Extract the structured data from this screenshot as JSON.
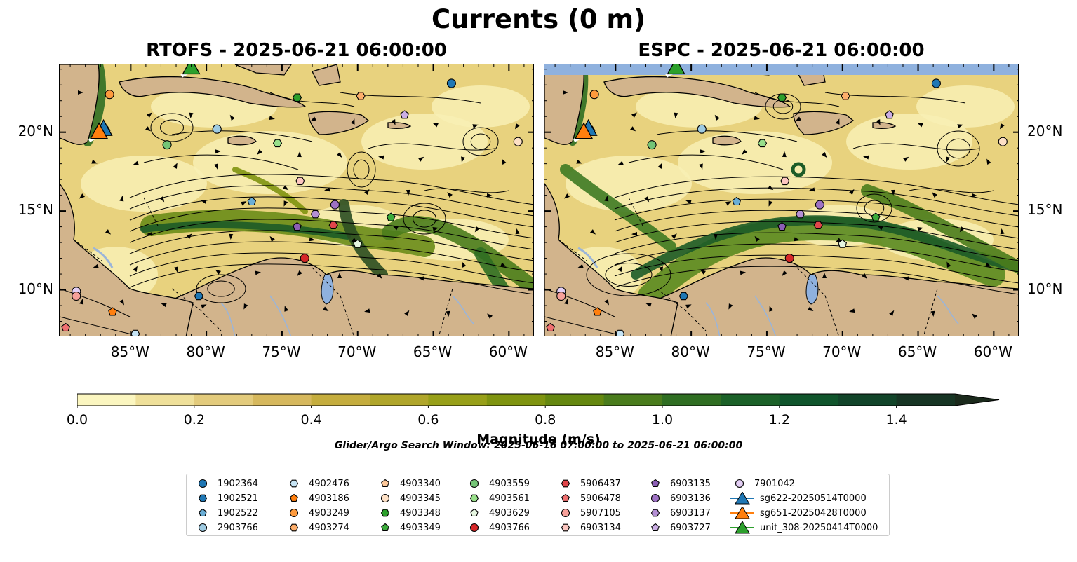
{
  "figure": {
    "title": "Currents (0 m)",
    "search_window": "Glider/Argo Search Window: 2025-06-16 07:00:00 to 2025-06-21 06:00:00"
  },
  "maps": [
    {
      "title": "RTOFS - 2025-06-21 06:00:00"
    },
    {
      "title": "ESPC - 2025-06-21 06:00:00"
    }
  ],
  "axes": {
    "lon_labels": [
      "85°W",
      "80°W",
      "75°W",
      "70°W",
      "65°W",
      "60°W"
    ],
    "lon_values": [
      -85,
      -80,
      -75,
      -70,
      -65,
      -60
    ],
    "lat_labels": [
      "20°N",
      "15°N",
      "10°N"
    ],
    "lat_values": [
      20,
      15,
      10
    ],
    "lon_range": [
      -89.7,
      -58.3
    ],
    "lat_range": [
      7,
      24.3
    ]
  },
  "colorbar": {
    "label": "Magnitude (m/s)",
    "tick_labels": [
      "0.0",
      "0.2",
      "0.4",
      "0.6",
      "0.8",
      "1.0",
      "1.2",
      "1.4"
    ],
    "range": [
      0,
      1.5
    ],
    "extend": "max",
    "colors": [
      "#fbf6c0",
      "#efe09a",
      "#e3cb7c",
      "#d6b85d",
      "#c5ad3e",
      "#b0a62b",
      "#98a019",
      "#7f9410",
      "#658810",
      "#4a7c1c",
      "#2f6e22",
      "#1b6128",
      "#10552c",
      "#12452a",
      "#173524",
      "#1b2a1c"
    ]
  },
  "colors": {
    "land": "#d2b48c",
    "water_fill": "#8fb1de",
    "river": "#9bb5d9"
  },
  "legend": {
    "items": [
      {
        "label": "1902364",
        "marker": "circle",
        "color": "#1f77b4"
      },
      {
        "label": "1902521",
        "marker": "hexagon",
        "color": "#1f77b4"
      },
      {
        "label": "1902522",
        "marker": "pentagon",
        "color": "#6aaed6"
      },
      {
        "label": "2903766",
        "marker": "circle",
        "color": "#9ecae1"
      },
      {
        "label": "4902476",
        "marker": "hexagon",
        "color": "#c6e4f5"
      },
      {
        "label": "4903186",
        "marker": "pentagon",
        "color": "#ff7f0e"
      },
      {
        "label": "4903249",
        "marker": "circle",
        "color": "#fd9a3d"
      },
      {
        "label": "4903274",
        "marker": "hexagon",
        "color": "#fdae6b"
      },
      {
        "label": "4903340",
        "marker": "pentagon",
        "color": "#fdc89a"
      },
      {
        "label": "4903345",
        "marker": "circle",
        "color": "#fde0c5"
      },
      {
        "label": "4903348",
        "marker": "hexagon",
        "color": "#2ca02c"
      },
      {
        "label": "4903349",
        "marker": "pentagon",
        "color": "#3bab3b"
      },
      {
        "label": "4903559",
        "marker": "circle",
        "color": "#74c476"
      },
      {
        "label": "4903561",
        "marker": "hexagon",
        "color": "#98df8a"
      },
      {
        "label": "4903629",
        "marker": "pentagon",
        "color": "#e5f5e0"
      },
      {
        "label": "4903766",
        "marker": "circle",
        "color": "#d62728"
      },
      {
        "label": "5906437",
        "marker": "hexagon",
        "color": "#e0454a"
      },
      {
        "label": "5906478",
        "marker": "pentagon",
        "color": "#f07070"
      },
      {
        "label": "5907105",
        "marker": "circle",
        "color": "#f7a09a"
      },
      {
        "label": "6903134",
        "marker": "hexagon",
        "color": "#fcc6c0"
      },
      {
        "label": "6903135",
        "marker": "pentagon",
        "color": "#8c5fb5"
      },
      {
        "label": "6903136",
        "marker": "circle",
        "color": "#9e72c4"
      },
      {
        "label": "6903137",
        "marker": "hexagon",
        "color": "#b48fd4"
      },
      {
        "label": "6903727",
        "marker": "pentagon",
        "color": "#cbaee4"
      },
      {
        "label": "7901042",
        "marker": "circle",
        "color": "#e4cff5"
      },
      {
        "label": "sg622-20250514T0000",
        "marker": "triangle-line",
        "color": "#1f77b4"
      },
      {
        "label": "sg651-20250428T0000",
        "marker": "triangle-line",
        "color": "#ff7f0e"
      },
      {
        "label": "unit_308-20250414T0000",
        "marker": "triangle-line",
        "color": "#2ca02c"
      }
    ]
  },
  "floats": [
    {
      "id": "1902364",
      "lon": -63.8,
      "lat": 23.1
    },
    {
      "id": "2903766",
      "lon": -79.3,
      "lat": 20.2
    },
    {
      "id": "4903249",
      "lon": -86.4,
      "lat": 22.4
    },
    {
      "id": "4903274",
      "lon": -69.8,
      "lat": 22.3
    },
    {
      "id": "4903345",
      "lon": -59.4,
      "lat": 19.4
    },
    {
      "id": "4903348",
      "lon": -74.0,
      "lat": 22.2
    },
    {
      "id": "4903559",
      "lon": -82.6,
      "lat": 19.2
    },
    {
      "id": "4903561",
      "lon": -75.3,
      "lat": 19.3
    },
    {
      "id": "6903727",
      "lon": -66.9,
      "lat": 21.1
    },
    {
      "id": "6903134",
      "lon": -73.8,
      "lat": 16.9
    },
    {
      "id": "1902522",
      "lon": -77.0,
      "lat": 15.6
    },
    {
      "id": "6903137",
      "lon": -72.8,
      "lat": 14.8
    },
    {
      "id": "6903136",
      "lon": -71.5,
      "lat": 15.4
    },
    {
      "id": "6903135",
      "lon": -74.0,
      "lat": 14.0
    },
    {
      "id": "5906437",
      "lon": -71.6,
      "lat": 14.1
    },
    {
      "id": "4903349",
      "lon": -67.8,
      "lat": 14.6
    },
    {
      "id": "4903629",
      "lon": -70.0,
      "lat": 12.9
    },
    {
      "id": "4903766",
      "lon": -73.5,
      "lat": 12.0
    },
    {
      "id": "1902521",
      "lon": -80.5,
      "lat": 9.6
    },
    {
      "id": "7901042",
      "lon": -88.6,
      "lat": 9.9
    },
    {
      "id": "5907105",
      "lon": -88.6,
      "lat": 9.6
    },
    {
      "id": "4903186",
      "lon": -86.2,
      "lat": 8.6
    },
    {
      "id": "5906478",
      "lon": -89.3,
      "lat": 7.6
    },
    {
      "id": "4902476",
      "lon": -84.7,
      "lat": 7.2
    }
  ],
  "gliders": [
    {
      "id": "sg622-20250514T0000",
      "lon": -86.8,
      "lat": 20.2
    },
    {
      "id": "sg651-20250428T0000",
      "lon": -87.1,
      "lat": 20.0
    },
    {
      "id": "unit_308-20250414T0000",
      "lon": -81.0,
      "lat": 24.1
    }
  ]
}
